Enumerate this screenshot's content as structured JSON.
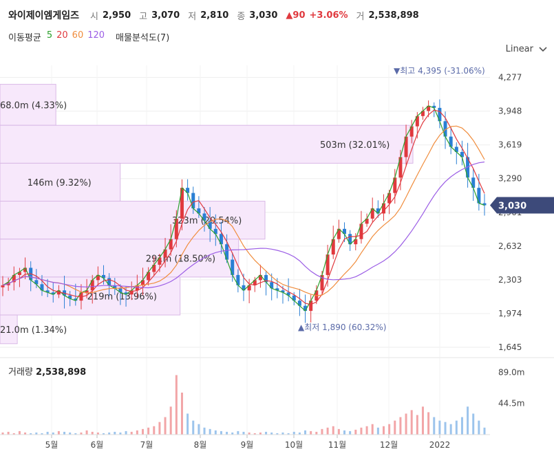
{
  "header": {
    "name": "와이제이엠게임즈",
    "open_label": "시",
    "open": "2,950",
    "high_label": "고",
    "high": "3,070",
    "low_label": "저",
    "low": "2,810",
    "close_label": "종",
    "close": "3,030",
    "change": "▲90",
    "change_pct": "+3.06%",
    "volume_label": "거",
    "volume": "2,538,898"
  },
  "indicators": {
    "ma_label": "이동평균",
    "ma_periods": [
      "5",
      "20",
      "60",
      "120"
    ],
    "ma_colors": [
      "#2ca02c",
      "#e0393e",
      "#f08c3c",
      "#9b5de5"
    ],
    "volume_profile_label": "매물분석도(7)"
  },
  "scale_select": {
    "value": "Linear"
  },
  "colors": {
    "up": "#e0393e",
    "down": "#2a7fd4",
    "profile_fill": "#f7e8fb",
    "profile_stroke": "#d9b8e6",
    "current_badge": "#3d4a7a"
  },
  "chart_data": {
    "type": "candlestick",
    "ylim": [
      1645,
      4395
    ],
    "y_ticks": [
      "4,277",
      "3,948",
      "3,619",
      "3,290",
      "2,961",
      "2,632",
      "2,303",
      "1,974",
      "1,645"
    ],
    "x_ticks": [
      "5월",
      "6월",
      "7월",
      "8월",
      "9월",
      "10월",
      "11월",
      "12월",
      "2022"
    ],
    "high_annotation": "▼최고 4,395 (-31.06%)",
    "low_annotation": "▲최저 1,890 (60.32%)",
    "current_price": "3,030",
    "volume_profile": [
      {
        "price_low": 3810,
        "price_high": 4210,
        "label": "68.0m (4.33%)",
        "share": 4.33
      },
      {
        "price_low": 3440,
        "price_high": 3810,
        "label": "503m (32.01%)",
        "share": 32.01
      },
      {
        "price_low": 3070,
        "price_high": 3440,
        "label": "146m (9.32%)",
        "share": 9.32
      },
      {
        "price_low": 2700,
        "price_high": 3070,
        "label": "323m (20.54%)",
        "share": 20.54
      },
      {
        "price_low": 2330,
        "price_high": 2700,
        "label": "291m (18.50%)",
        "share": 18.5
      },
      {
        "price_low": 1960,
        "price_high": 2330,
        "label": "219m (13.96%)",
        "share": 13.96
      },
      {
        "price_low": 1680,
        "price_high": 1960,
        "label": "21.0m (1.34%)",
        "share": 1.34
      }
    ],
    "series_close": [
      2250,
      2280,
      2350,
      2380,
      2420,
      2300,
      2260,
      2200,
      2180,
      2160,
      2200,
      2150,
      2120,
      2100,
      2180,
      2200,
      2300,
      2350,
      2320,
      2250,
      2220,
      2180,
      2160,
      2200,
      2250,
      2300,
      2380,
      2450,
      2520,
      2600,
      2700,
      2900,
      3200,
      3150,
      3000,
      2950,
      2880,
      2800,
      2750,
      2650,
      2500,
      2350,
      2250,
      2200,
      2250,
      2300,
      2350,
      2280,
      2220,
      2200,
      2180,
      2150,
      2100,
      2050,
      2000,
      2100,
      2200,
      2350,
      2550,
      2700,
      2800,
      2750,
      2650,
      2700,
      2850,
      2900,
      3000,
      2950,
      3050,
      3150,
      3300,
      3500,
      3700,
      3800,
      3900,
      3950,
      4000,
      3980,
      3850,
      3700,
      3600,
      3550,
      3500,
      3300,
      3200,
      3050,
      3030
    ],
    "volume": {
      "ticks": [
        "89.0m",
        "44.5m"
      ],
      "ylim": [
        0,
        110
      ],
      "values": [
        3,
        4,
        2,
        5,
        3,
        2,
        3,
        2,
        4,
        3,
        5,
        4,
        3,
        2,
        3,
        6,
        4,
        3,
        2,
        3,
        4,
        3,
        5,
        4,
        6,
        8,
        10,
        12,
        18,
        25,
        40,
        85,
        60,
        30,
        20,
        15,
        10,
        8,
        6,
        5,
        4,
        3,
        5,
        4,
        3,
        2,
        3,
        4,
        3,
        2,
        3,
        2,
        4,
        3,
        6,
        5,
        4,
        8,
        10,
        12,
        8,
        6,
        5,
        7,
        10,
        12,
        15,
        10,
        12,
        15,
        20,
        25,
        30,
        35,
        28,
        40,
        32,
        25,
        20,
        18,
        15,
        20,
        25,
        40,
        30,
        20,
        10
      ],
      "label": "거래량",
      "current": "2,538,898"
    }
  }
}
